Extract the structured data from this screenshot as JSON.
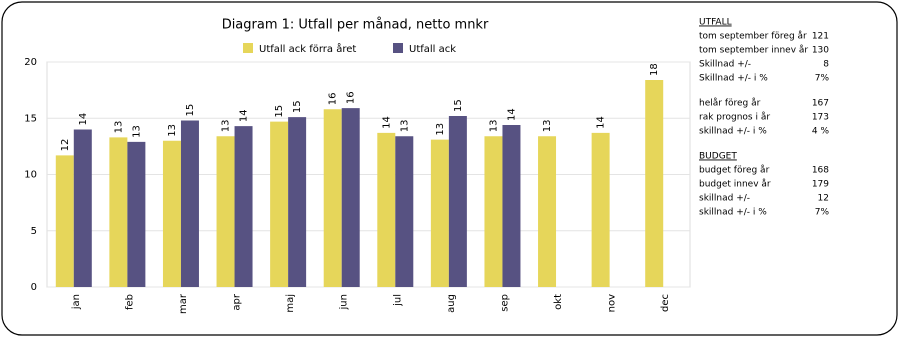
{
  "chart_data": {
    "type": "bar",
    "title": "Diagram 1: Utfall per månad, netto mnkr",
    "categories": [
      "jan",
      "feb",
      "mar",
      "apr",
      "maj",
      "jun",
      "jul",
      "aug",
      "sep",
      "okt",
      "nov",
      "dec"
    ],
    "series": [
      {
        "name": "Utfall ack förra året",
        "color": "#e6d65a",
        "values": [
          11.7,
          13.3,
          13.0,
          13.4,
          14.7,
          15.8,
          13.7,
          13.1,
          13.4,
          13.4,
          13.7,
          18.4
        ],
        "value_labels": [
          "12",
          "13",
          "13",
          "13",
          "15",
          "16",
          "14",
          "13",
          "13",
          "13",
          "14",
          "18"
        ]
      },
      {
        "name": "Utfall ack",
        "color": "#575282",
        "values": [
          14.0,
          12.9,
          14.8,
          14.3,
          15.1,
          15.9,
          13.4,
          15.2,
          14.4,
          null,
          null,
          null
        ],
        "value_labels": [
          "14",
          "13",
          "15",
          "14",
          "15",
          "16",
          "13",
          "15",
          "14",
          null,
          null,
          null
        ]
      }
    ],
    "ylim": [
      0,
      20
    ],
    "yticks": [
      0,
      5,
      10,
      15,
      20
    ],
    "grid": true,
    "legend": "top"
  },
  "side_panel": {
    "sections": [
      {
        "heading": "UTFALL",
        "rows": [
          [
            "tom  september föreg år",
            "121"
          ],
          [
            "tom  september innev år",
            "130"
          ],
          [
            "Skillnad +/-",
            "8"
          ],
          [
            "Skillnad +/- i %",
            "7%"
          ]
        ]
      },
      {
        "rows": [
          [
            "helår föreg år",
            "167"
          ],
          [
            "rak prognos i år",
            "173"
          ],
          [
            "skillnad +/- i %",
            "4 %"
          ]
        ]
      },
      {
        "heading": "BUDGET",
        "rows": [
          [
            "budget föreg år",
            "168"
          ],
          [
            "budget innev år",
            "179"
          ],
          [
            "skillnad +/-",
            "12"
          ],
          [
            "skillnad +/- i %",
            "7%"
          ]
        ]
      }
    ]
  }
}
